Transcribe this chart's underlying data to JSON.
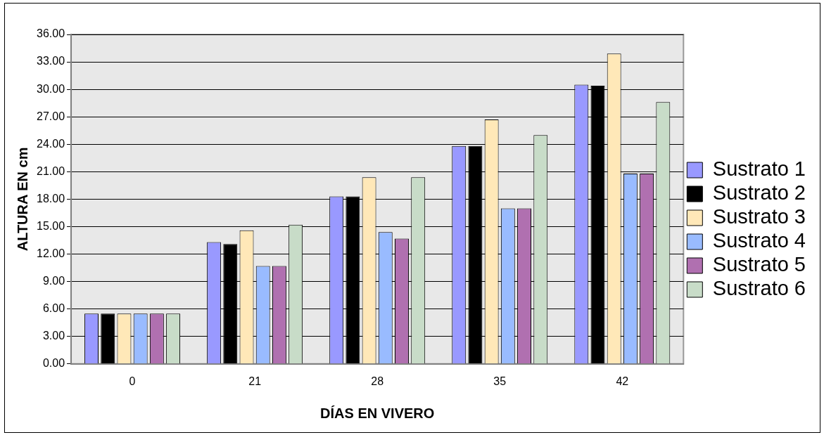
{
  "chart_data": {
    "type": "bar",
    "xlabel": "DÍAS EN VIVERO",
    "ylabel": "ALTURA EN cm",
    "categories": [
      "0",
      "21",
      "28",
      "35",
      "42"
    ],
    "series": [
      {
        "name": "Sustrato 1",
        "color": "#9999ff",
        "values": [
          5.5,
          13.3,
          18.3,
          23.8,
          30.5
        ]
      },
      {
        "name": "Sustrato 2",
        "color": "#000000",
        "values": [
          5.5,
          13.1,
          18.3,
          23.8,
          30.4
        ]
      },
      {
        "name": "Sustrato 3",
        "color": "#ffe8b8",
        "values": [
          5.5,
          14.6,
          20.4,
          26.7,
          33.9
        ]
      },
      {
        "name": "Sustrato 4",
        "color": "#99bbff",
        "values": [
          5.5,
          10.7,
          14.4,
          17.0,
          20.8
        ]
      },
      {
        "name": "Sustrato 5",
        "color": "#b070b0",
        "values": [
          5.5,
          10.7,
          13.7,
          17.0,
          20.8
        ]
      },
      {
        "name": "Sustrato 6",
        "color": "#c8dcc8",
        "values": [
          5.5,
          15.2,
          20.4,
          25.0,
          28.6
        ]
      }
    ],
    "ylim": [
      0,
      36
    ],
    "yticks": [
      {
        "value": 0,
        "label": "0.00"
      },
      {
        "value": 3,
        "label": "3.00"
      },
      {
        "value": 6,
        "label": "6.00"
      },
      {
        "value": 9,
        "label": "9.00"
      },
      {
        "value": 12,
        "label": "12.00"
      },
      {
        "value": 15,
        "label": "15.00"
      },
      {
        "value": 18,
        "label": "18.00"
      },
      {
        "value": 21,
        "label": "21.00"
      },
      {
        "value": 24,
        "label": "24.00"
      },
      {
        "value": 27,
        "label": "27.00"
      },
      {
        "value": 30,
        "label": "30.00"
      },
      {
        "value": 33,
        "label": "33.00"
      },
      {
        "value": 36,
        "label": "36.00"
      }
    ],
    "grid": "y",
    "legend": "right"
  }
}
